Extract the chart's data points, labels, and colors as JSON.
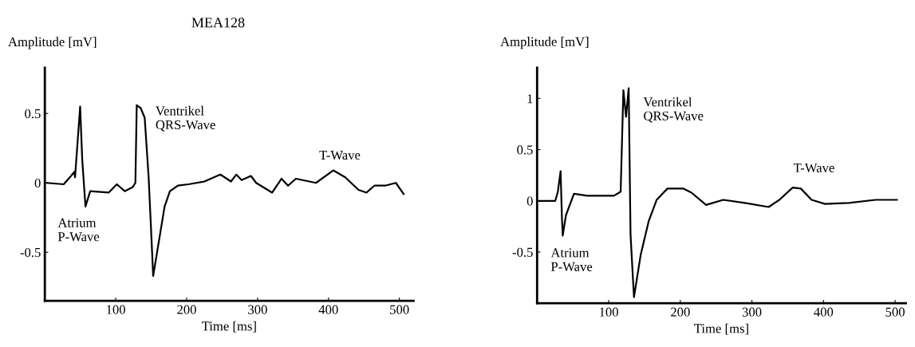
{
  "chart_data": [
    {
      "type": "line",
      "title": "MEA128",
      "xlabel": "Time [ms]",
      "ylabel": "Amplitude [mV]",
      "xlim": [
        0,
        520
      ],
      "ylim": [
        -0.85,
        0.83
      ],
      "xticks": [
        100,
        200,
        300,
        400,
        500
      ],
      "yticks": [
        {
          "value": -0.5,
          "label": "-0.5"
        },
        0,
        0.5
      ],
      "grid": false,
      "legend": false,
      "line_style": "solid",
      "annotations": [
        "Ventrikel\nQRS-Wave",
        "Atrium\nP-Wave",
        "T-Wave"
      ],
      "series": [
        {
          "color": "#000000",
          "x": [
            3,
            26.6,
            37,
            41.6,
            42.6,
            49.8,
            52.7,
            57.3,
            64,
            90,
            101.5,
            112.7,
            124,
            127.7,
            129.6,
            135,
            140.8,
            146.4,
            152.8,
            161.5,
            168.9,
            176.4,
            187.6,
            202.6,
            225,
            247.5,
            262.5,
            270,
            277.5,
            290.6,
            298,
            320.6,
            333.7,
            343,
            354,
            382.4,
            406.7,
            423.6,
            442.3,
            453.6,
            464.8,
            480,
            495,
            506
          ],
          "values": [
            0,
            -0.01,
            0.05,
            0.08,
            0.04,
            0.55,
            0.17,
            -0.17,
            -0.06,
            -0.07,
            -0.01,
            -0.06,
            -0.03,
            0,
            0.56,
            0.54,
            0.47,
            0.04,
            -0.67,
            -0.4,
            -0.17,
            -0.06,
            -0.02,
            -0.01,
            0.01,
            0.06,
            0.01,
            0.06,
            0.02,
            0.05,
            0,
            -0.07,
            0.03,
            -0.02,
            0.03,
            0,
            0.09,
            0.04,
            -0.05,
            -0.07,
            -0.02,
            -0.02,
            0,
            -0.08
          ]
        }
      ]
    },
    {
      "type": "line",
      "xlabel": "Time [ms]",
      "ylabel": "Amplitude [mV]",
      "xlim": [
        0,
        515
      ],
      "ylim": [
        -1.0,
        1.3
      ],
      "xticks": [
        100,
        200,
        300,
        400,
        500
      ],
      "yticks": [
        {
          "value": -0.5,
          "label": "-0.5"
        },
        0,
        0.5,
        1
      ],
      "grid": false,
      "legend": false,
      "line_style": "solid",
      "annotations": [
        "Ventrikel\nQRS-Wave",
        "Atrium\nP-Wave",
        "T-Wave"
      ],
      "series": [
        {
          "color": "#000000",
          "x": [
            0,
            25.4,
            29,
            32.8,
            34.7,
            35.8,
            40.3,
            51.5,
            70,
            107.4,
            116.7,
            120.5,
            124.2,
            127.9,
            130.5,
            135.3,
            144.6,
            155.8,
            167,
            182,
            196.9,
            204,
            215.6,
            236,
            260,
            290,
            323.4,
            338.4,
            357,
            368.3,
            383.3,
            402,
            435.5,
            472.8,
            502.6
          ],
          "values": [
            0,
            0,
            0.09,
            0.29,
            -0.17,
            -0.34,
            -0.14,
            0.07,
            0.05,
            0.05,
            0.09,
            1.08,
            0.82,
            1.1,
            -0.33,
            -0.94,
            -0.53,
            -0.2,
            0.01,
            0.12,
            0.12,
            0.12,
            0.08,
            -0.04,
            0.01,
            -0.02,
            -0.06,
            0.01,
            0.13,
            0.12,
            0.01,
            -0.03,
            -0.02,
            0.01,
            0.01
          ]
        }
      ]
    }
  ]
}
